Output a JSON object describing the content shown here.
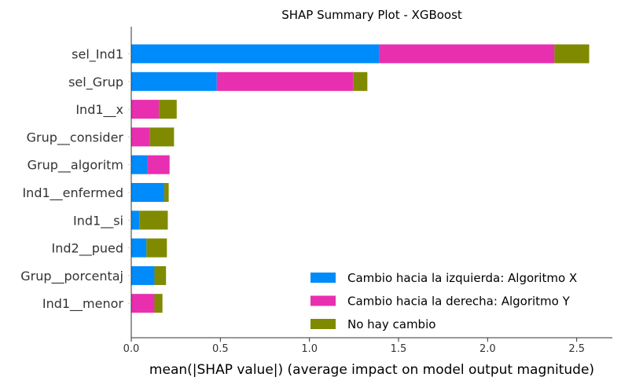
{
  "chart_data": {
    "type": "bar",
    "orientation": "horizontal",
    "stacked": true,
    "title": "SHAP Summary Plot - XGBoost",
    "xlabel": "mean(|SHAP value|) (average impact on model output magnitude)",
    "ylabel": "",
    "xlim": [
      0,
      2.7
    ],
    "xticks": [
      0.0,
      0.5,
      1.0,
      1.5,
      2.0,
      2.5
    ],
    "xtick_labels": [
      "0.0",
      "0.5",
      "1.0",
      "1.5",
      "2.0",
      "2.5"
    ],
    "grid": false,
    "legend_position": "lower-right",
    "categories": [
      "sel_Ind1",
      "sel_Grup",
      "Ind1__x",
      "Grup__consider",
      "Grup__algoritm",
      "Ind1__enfermed",
      "Ind1__si",
      "Ind2__pued",
      "Grup__porcentaj",
      "Ind1__menor"
    ],
    "series": [
      {
        "name": "Cambio hacia la izquierda: Algoritmo X",
        "color": "#008bfb",
        "values": [
          1.39,
          0.48,
          0.0,
          0.0,
          0.09,
          0.185,
          0.045,
          0.085,
          0.13,
          0.0
        ]
      },
      {
        "name": "Cambio hacia la derecha: Algoritmo Y",
        "color": "#e82fb0",
        "values": [
          0.985,
          0.765,
          0.155,
          0.105,
          0.125,
          0.0,
          0.0,
          0.0,
          0.0,
          0.13
        ]
      },
      {
        "name": "No hay cambio",
        "color": "#808a00",
        "values": [
          0.195,
          0.08,
          0.1,
          0.135,
          0.0,
          0.025,
          0.16,
          0.115,
          0.065,
          0.045
        ]
      }
    ]
  }
}
